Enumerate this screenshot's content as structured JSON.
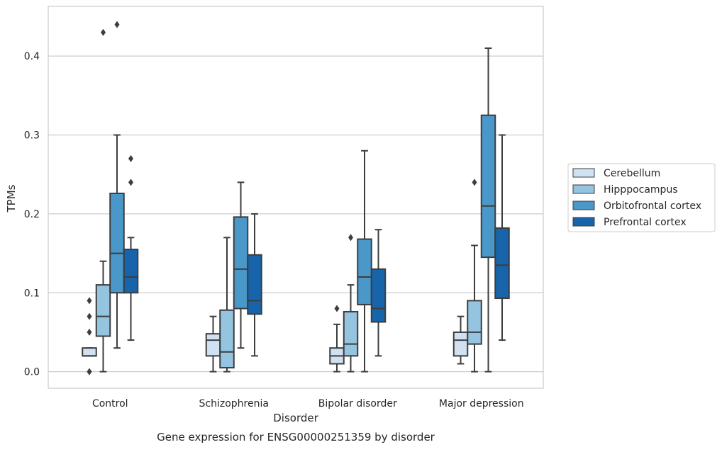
{
  "chart_data": {
    "type": "boxplot",
    "title": "",
    "caption": "Gene expression for ENSG00000251359 by disorder",
    "xlabel": "Disorder",
    "ylabel": "TPMs",
    "ylim": [
      -0.021,
      0.463
    ],
    "yticks": [
      0.0,
      0.1,
      0.2,
      0.3,
      0.4
    ],
    "ytick_labels": [
      "0.0",
      "0.1",
      "0.2",
      "0.3",
      "0.4"
    ],
    "grid": "horizontal",
    "legend_position": "right",
    "categories": [
      "Control",
      "Schizophrenia",
      "Bipolar disorder",
      "Major depression"
    ],
    "series": [
      {
        "name": "Cerebellum",
        "color": "#d0e1f2",
        "boxes": [
          {
            "min": 0.02,
            "q1": 0.02,
            "median": 0.02,
            "q3": 0.03,
            "max": 0.03,
            "outliers": [
              0.09,
              0.07,
              0.05,
              0.0,
              0.0
            ]
          },
          {
            "min": 0.0,
            "q1": 0.02,
            "median": 0.04,
            "q3": 0.048,
            "max": 0.07,
            "outliers": []
          },
          {
            "min": 0.0,
            "q1": 0.01,
            "median": 0.02,
            "q3": 0.03,
            "max": 0.06,
            "outliers": [
              0.08
            ]
          },
          {
            "min": 0.01,
            "q1": 0.02,
            "median": 0.04,
            "q3": 0.05,
            "max": 0.07,
            "outliers": []
          }
        ]
      },
      {
        "name": "Hipppocampus",
        "color": "#94c4df",
        "boxes": [
          {
            "min": 0.0,
            "q1": 0.045,
            "median": 0.07,
            "q3": 0.11,
            "max": 0.14,
            "outliers": [
              0.43
            ]
          },
          {
            "min": 0.0,
            "q1": 0.005,
            "median": 0.025,
            "q3": 0.078,
            "max": 0.17,
            "outliers": []
          },
          {
            "min": 0.0,
            "q1": 0.02,
            "median": 0.035,
            "q3": 0.076,
            "max": 0.11,
            "outliers": [
              0.17
            ]
          },
          {
            "min": 0.0,
            "q1": 0.035,
            "median": 0.05,
            "q3": 0.09,
            "max": 0.16,
            "outliers": [
              0.24
            ]
          }
        ]
      },
      {
        "name": "Orbitofrontal cortex",
        "color": "#4a98c9",
        "boxes": [
          {
            "min": 0.03,
            "q1": 0.1,
            "median": 0.15,
            "q3": 0.226,
            "max": 0.3,
            "outliers": [
              0.44
            ]
          },
          {
            "min": 0.03,
            "q1": 0.08,
            "median": 0.13,
            "q3": 0.196,
            "max": 0.24,
            "outliers": []
          },
          {
            "min": 0.0,
            "q1": 0.085,
            "median": 0.12,
            "q3": 0.168,
            "max": 0.28,
            "outliers": []
          },
          {
            "min": 0.0,
            "q1": 0.145,
            "median": 0.21,
            "q3": 0.325,
            "max": 0.41,
            "outliers": []
          }
        ]
      },
      {
        "name": "Prefrontal cortex",
        "color": "#1764ab",
        "boxes": [
          {
            "min": 0.04,
            "q1": 0.1,
            "median": 0.12,
            "q3": 0.155,
            "max": 0.17,
            "outliers": [
              0.27,
              0.24
            ]
          },
          {
            "min": 0.02,
            "q1": 0.073,
            "median": 0.09,
            "q3": 0.148,
            "max": 0.2,
            "outliers": []
          },
          {
            "min": 0.02,
            "q1": 0.063,
            "median": 0.08,
            "q3": 0.13,
            "max": 0.18,
            "outliers": []
          },
          {
            "min": 0.04,
            "q1": 0.093,
            "median": 0.135,
            "q3": 0.182,
            "max": 0.3,
            "outliers": []
          }
        ]
      }
    ]
  }
}
